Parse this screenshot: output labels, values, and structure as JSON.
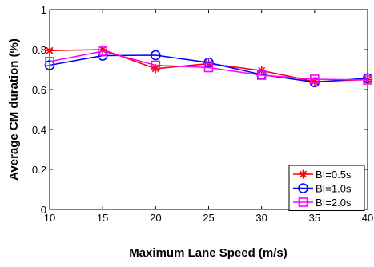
{
  "chart_data": {
    "type": "line",
    "title": "",
    "xlabel": "Maximum Lane Speed (m/s)",
    "ylabel": "Average CM duration (%)",
    "x": [
      10,
      15,
      20,
      25,
      30,
      35,
      40
    ],
    "xlim": [
      10,
      40
    ],
    "ylim": [
      0,
      1
    ],
    "xticks": [
      10,
      15,
      20,
      25,
      30,
      35,
      40
    ],
    "yticks": [
      0,
      0.2,
      0.4,
      0.6,
      0.8,
      1
    ],
    "xtick_labels": [
      "10",
      "15",
      "20",
      "25",
      "30",
      "35",
      "40"
    ],
    "ytick_labels": [
      "0",
      "0.2",
      "0.4",
      "0.6",
      "0.8",
      "1"
    ],
    "grid": false,
    "legend_position": "bottom-right",
    "series": [
      {
        "name": "BI=0.5s",
        "values": [
          0.795,
          0.8,
          0.705,
          0.73,
          0.695,
          0.64,
          0.65
        ],
        "color": "#ff0000",
        "marker": "asterisk"
      },
      {
        "name": "BI=1.0s",
        "values": [
          0.722,
          0.77,
          0.772,
          0.735,
          0.675,
          0.637,
          0.657
        ],
        "color": "#0000ff",
        "marker": "circle"
      },
      {
        "name": "BI=2.0s",
        "values": [
          0.74,
          0.792,
          0.722,
          0.71,
          0.672,
          0.652,
          0.648
        ],
        "color": "#ff00ff",
        "marker": "square"
      }
    ]
  }
}
